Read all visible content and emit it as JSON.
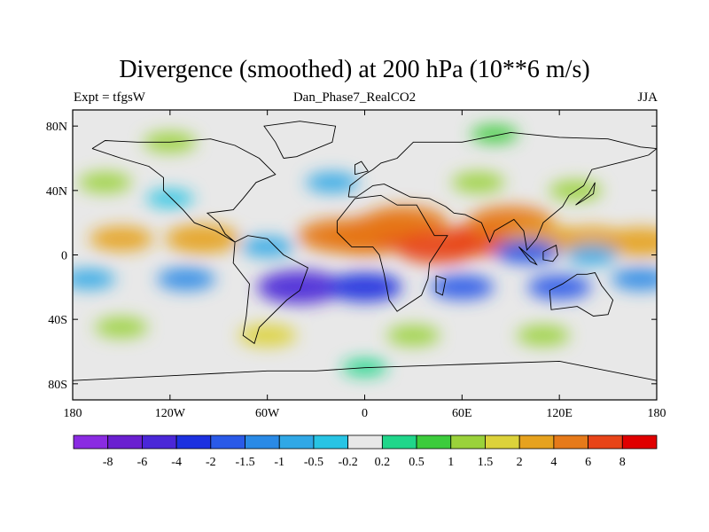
{
  "chart_data": {
    "type": "heatmap",
    "title": "Divergence (smoothed) at 200 hPa (10**6 m/s)",
    "left_label": "Expt = tfgsW",
    "center_label": "Dan_Phase7_RealCO2",
    "right_label": "JJA",
    "x_ticks": [
      {
        "value": -180,
        "label": "180"
      },
      {
        "value": -120,
        "label": "120W"
      },
      {
        "value": -60,
        "label": "60W"
      },
      {
        "value": 0,
        "label": "0"
      },
      {
        "value": 60,
        "label": "60E"
      },
      {
        "value": 120,
        "label": "120E"
      },
      {
        "value": 180,
        "label": "180"
      }
    ],
    "y_ticks": [
      {
        "value": 80,
        "label": "80N"
      },
      {
        "value": 40,
        "label": "40N"
      },
      {
        "value": 0,
        "label": "0"
      },
      {
        "value": -40,
        "label": "40S"
      },
      {
        "value": -80,
        "label": "80S"
      }
    ],
    "xlim": [
      -180,
      180
    ],
    "ylim": [
      -90,
      90
    ],
    "colorbar": {
      "levels": [
        "-8",
        "-6",
        "-4",
        "-2",
        "-1.5",
        "-1",
        "-0.5",
        "-0.2",
        "0.2",
        "0.5",
        "1",
        "1.5",
        "2",
        "4",
        "6",
        "8"
      ],
      "colors": [
        "#8a2be2",
        "#6a1fd0",
        "#4a27d8",
        "#1c30e0",
        "#2a5ae8",
        "#2a8ae6",
        "#30a8e6",
        "#28c4e4",
        "#e8e8e8",
        "#20d68a",
        "#3ccc3c",
        "#9ad23a",
        "#dcd23a",
        "#e6a21e",
        "#e67a1a",
        "#e84418",
        "#e00000"
      ]
    },
    "features": [
      {
        "lon": 0,
        "lat": 10,
        "value": 5
      },
      {
        "lon": 12,
        "lat": 15,
        "value": 6
      },
      {
        "lon": -15,
        "lat": 12,
        "value": 4
      },
      {
        "lon": 25,
        "lat": 20,
        "value": 4
      },
      {
        "lon": 45,
        "lat": 5,
        "value": 6
      },
      {
        "lon": 75,
        "lat": 10,
        "value": 6
      },
      {
        "lon": 90,
        "lat": 20,
        "value": 4
      },
      {
        "lon": 110,
        "lat": 10,
        "value": 3
      },
      {
        "lon": 140,
        "lat": 10,
        "value": 2
      },
      {
        "lon": 170,
        "lat": 8,
        "value": 3
      },
      {
        "lon": -150,
        "lat": 10,
        "value": 2
      },
      {
        "lon": -100,
        "lat": 10,
        "value": 3
      },
      {
        "lon": -60,
        "lat": 5,
        "value": -1
      },
      {
        "lon": -110,
        "lat": -15,
        "value": -1.5
      },
      {
        "lon": -40,
        "lat": -20,
        "value": -5
      },
      {
        "lon": 0,
        "lat": -20,
        "value": -3
      },
      {
        "lon": 60,
        "lat": -20,
        "value": -2
      },
      {
        "lon": 120,
        "lat": -20,
        "value": -2
      },
      {
        "lon": 170,
        "lat": -15,
        "value": -1.5
      },
      {
        "lon": -170,
        "lat": -15,
        "value": -1
      },
      {
        "lon": 100,
        "lat": 2,
        "value": -2
      },
      {
        "lon": 140,
        "lat": 0,
        "value": -1
      },
      {
        "lon": -160,
        "lat": 45,
        "value": 1
      },
      {
        "lon": -20,
        "lat": 45,
        "value": -1
      },
      {
        "lon": 70,
        "lat": 45,
        "value": 1
      },
      {
        "lon": 130,
        "lat": 40,
        "value": 1
      },
      {
        "lon": -120,
        "lat": 35,
        "value": -0.5
      },
      {
        "lon": -60,
        "lat": -50,
        "value": 1.5
      },
      {
        "lon": 30,
        "lat": -50,
        "value": 1
      },
      {
        "lon": 110,
        "lat": -50,
        "value": 1
      },
      {
        "lon": -150,
        "lat": -45,
        "value": 1
      },
      {
        "lon": 0,
        "lat": -70,
        "value": 0.3
      },
      {
        "lon": -120,
        "lat": 70,
        "value": 1
      },
      {
        "lon": 80,
        "lat": 75,
        "value": 0.5
      }
    ]
  }
}
